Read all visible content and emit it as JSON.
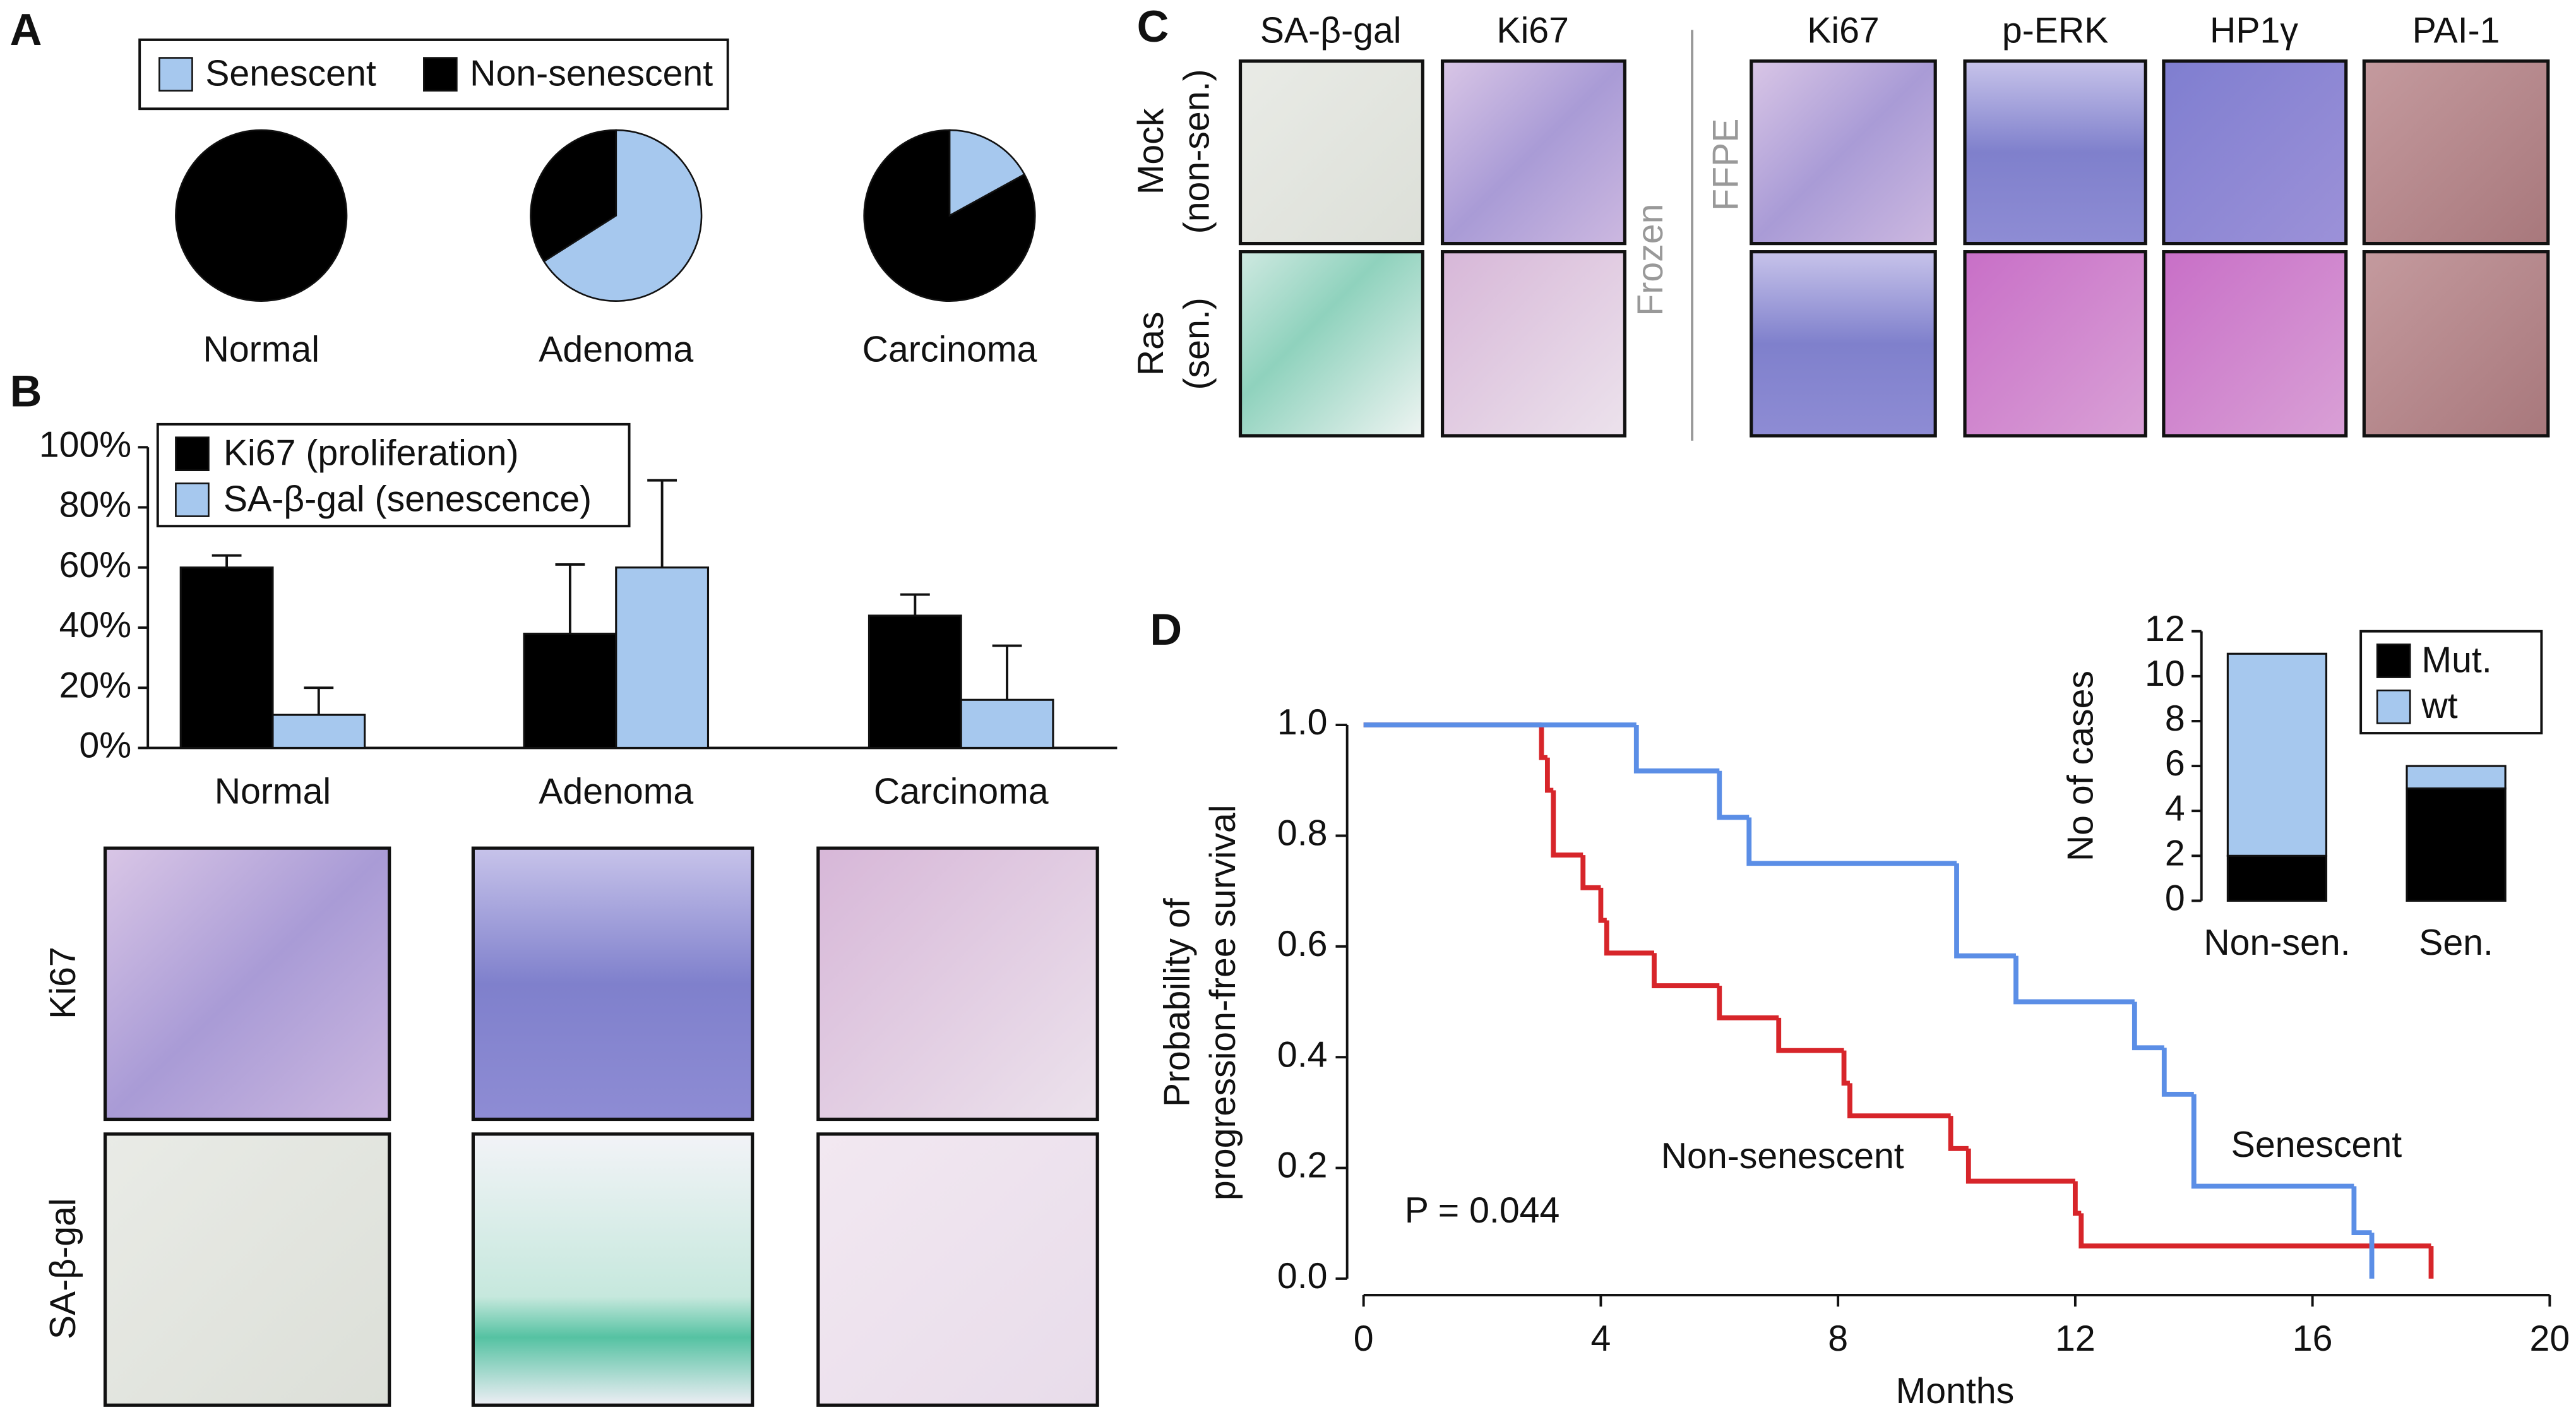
{
  "panel_labels": [
    "A",
    "B",
    "C",
    "D"
  ],
  "images_b": {
    "rows": [
      "Ki67",
      "SA-β-gal"
    ]
  },
  "images_c": {
    "columns": [
      "SA-β-gal",
      "Ki67",
      "Ki67",
      "p-ERK",
      "HP1γ",
      "PAI-1"
    ],
    "rows": [
      [
        "Mock",
        "(non-sen.)"
      ],
      [
        "Ras",
        "(sen.)"
      ]
    ],
    "groups": [
      "Frozen",
      "FFPE"
    ]
  },
  "chart_data": [
    {
      "type": "pie",
      "categories": [
        "Senescent",
        "Non-senescent"
      ],
      "colors": [
        "#a6c8ee",
        "#000000"
      ],
      "pies": [
        {
          "label": "Normal",
          "values": [
            0,
            100
          ]
        },
        {
          "label": "Adenoma",
          "values": [
            66,
            34
          ]
        },
        {
          "label": "Carcinoma",
          "values": [
            17,
            83
          ]
        }
      ]
    },
    {
      "type": "bar",
      "categories": [
        "Normal",
        "Adenoma",
        "Carcinoma"
      ],
      "series": [
        {
          "name": "Ki67 (proliferation)",
          "color": "#000000",
          "values": [
            60,
            38,
            44
          ],
          "errors": [
            4,
            23,
            7
          ]
        },
        {
          "name": "SA-β-gal (senescence)",
          "color": "#a6c8ee",
          "values": [
            11,
            60,
            16
          ],
          "errors": [
            9,
            29,
            18
          ]
        }
      ],
      "ylim": [
        0,
        100
      ],
      "yticks": [
        {
          "value": 0,
          "label": "0%"
        },
        {
          "value": 20,
          "label": "20%"
        },
        {
          "value": 40,
          "label": "40%"
        },
        {
          "value": 60,
          "label": "60%"
        },
        {
          "value": 80,
          "label": "80%"
        },
        {
          "value": 100,
          "label": "100%"
        }
      ],
      "legend": "upper left"
    },
    {
      "type": "step",
      "xlabel": "Months",
      "ylabel": [
        "Probability of",
        "progression-free survival"
      ],
      "annotation": "P = 0.044",
      "xlim": [
        0,
        20
      ],
      "xticks": [
        0,
        4,
        8,
        12,
        16,
        20
      ],
      "ylim": [
        0,
        1
      ],
      "yticks": [
        {
          "value": 0,
          "label": "0.0"
        },
        {
          "value": 0.2,
          "label": "0.2"
        },
        {
          "value": 0.4,
          "label": "0.4"
        },
        {
          "value": 0.6,
          "label": "0.6"
        },
        {
          "value": 0.8,
          "label": "0.8"
        },
        {
          "value": 1,
          "label": "1.0"
        }
      ],
      "series": [
        {
          "name": "Non-senescent",
          "color": "#d7252a",
          "x": [
            0,
            3.0,
            3.1,
            3.2,
            3.7,
            4.0,
            4.1,
            4.9,
            6.0,
            7.0,
            8.1,
            8.2,
            9.9,
            10.2,
            12.0,
            12.1,
            18.0
          ],
          "values": [
            1.0,
            0.941,
            0.882,
            0.765,
            0.706,
            0.647,
            0.588,
            0.529,
            0.471,
            0.412,
            0.353,
            0.294,
            0.235,
            0.176,
            0.118,
            0.059,
            0.0
          ]
        },
        {
          "name": "Senescent",
          "color": "#5b8ee6",
          "x": [
            0,
            4.6,
            6.0,
            6.5,
            10.0,
            11.0,
            13.0,
            13.5,
            14.0,
            16.7,
            17.0
          ],
          "values": [
            1.0,
            0.917,
            0.833,
            0.75,
            0.583,
            0.5,
            0.417,
            0.333,
            0.167,
            0.083,
            0.0
          ]
        }
      ]
    },
    {
      "type": "stacked-bar",
      "ylabel": "No of cases",
      "categories": [
        "Non-sen.",
        "Sen."
      ],
      "series": [
        {
          "name": "Mut.",
          "color": "#000000",
          "values": [
            2,
            5
          ]
        },
        {
          "name": "wt",
          "color": "#a6c8ee",
          "values": [
            9,
            1
          ]
        }
      ],
      "ylim": [
        0,
        12
      ],
      "yticks": [
        0,
        2,
        4,
        6,
        8,
        10,
        12
      ],
      "legend": "upper right"
    }
  ]
}
